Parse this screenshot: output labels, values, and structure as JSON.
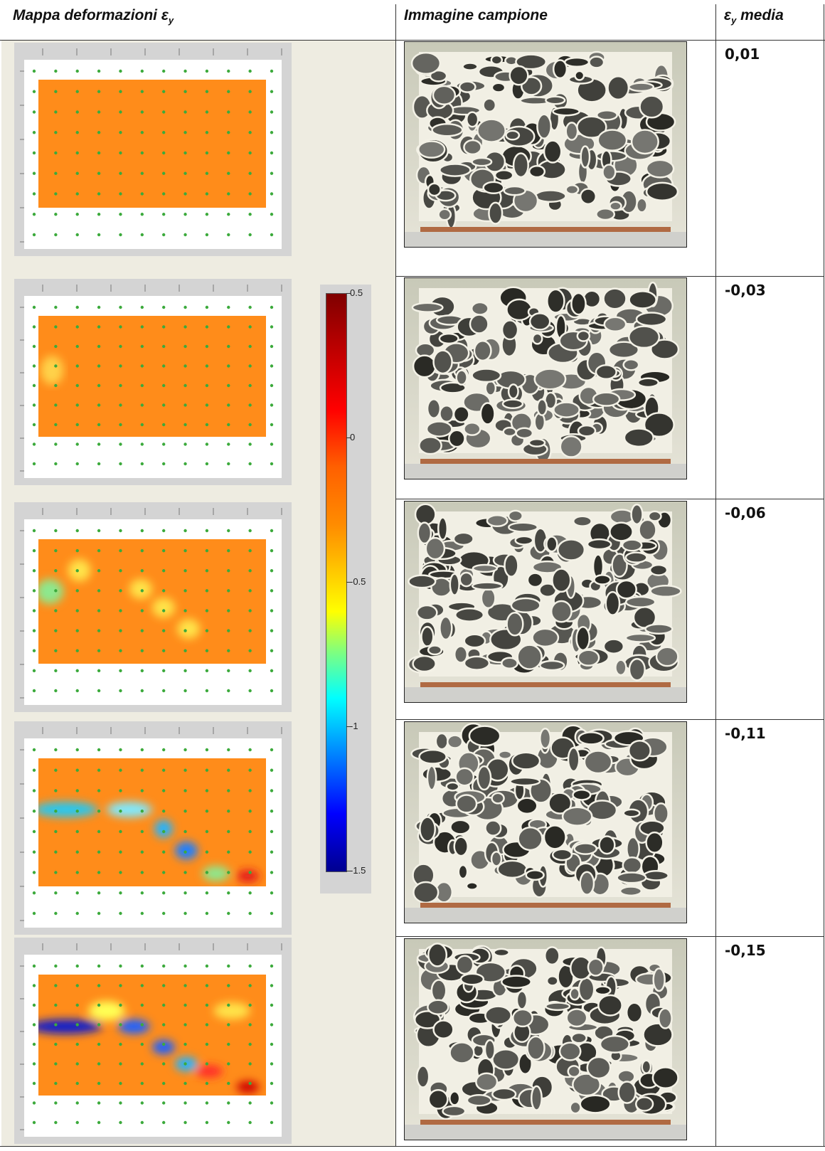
{
  "header": {
    "col1_label": "Mappa deformazioni ε",
    "col1_sub": "y",
    "col2_label": "Immagine campione",
    "col3_label": "ε",
    "col3_sub": "y",
    "col3_suffix": " media"
  },
  "rows": [
    {
      "strain_value": "0,01"
    },
    {
      "strain_value": "-0,03"
    },
    {
      "strain_value": "-0,06"
    },
    {
      "strain_value": "-0,11"
    },
    {
      "strain_value": "-0,15"
    }
  ],
  "colorbar": {
    "ticks": [
      "0.5",
      "0",
      "-0.5",
      "-1",
      "-1.5"
    ]
  },
  "colors": {
    "map_base": "#ff8c1a",
    "panel_bg": "#eeece1",
    "marker": "#3caa3c"
  }
}
